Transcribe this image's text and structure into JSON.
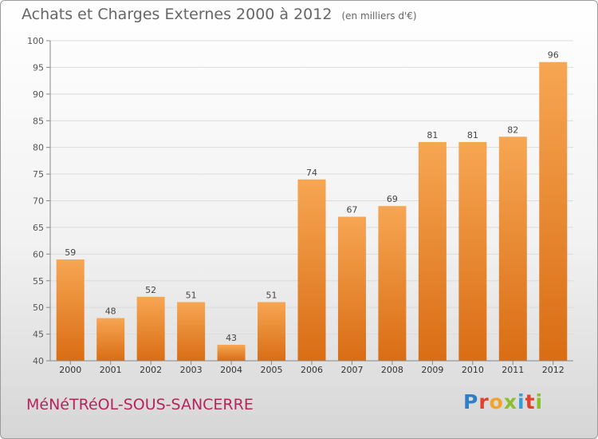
{
  "header": {
    "title": "Achats et Charges Externes 2000 à 2012",
    "unit": "(en milliers d'€)"
  },
  "footer": {
    "commune": "MéNéTRéOL-SOUS-SANCERRE",
    "logo_letters": [
      "P",
      "r",
      "o",
      "x",
      "i",
      "t",
      "i"
    ],
    "logo_colors": [
      "#2f7fc8",
      "#e2402d",
      "#f2a32a",
      "#8bbf2c",
      "#2f9fd8",
      "#e2402d",
      "#8bbf2c"
    ]
  },
  "chart_data": {
    "type": "bar",
    "categories": [
      "2000",
      "2001",
      "2002",
      "2003",
      "2004",
      "2005",
      "2006",
      "2007",
      "2008",
      "2009",
      "2010",
      "2011",
      "2012"
    ],
    "values": [
      59,
      48,
      52,
      51,
      43,
      51,
      74,
      67,
      69,
      81,
      81,
      82,
      96
    ],
    "title": "Achats et Charges Externes 2000 à 2012",
    "ylim": [
      40,
      100
    ],
    "yticks": [
      40,
      45,
      50,
      55,
      60,
      65,
      70,
      75,
      80,
      85,
      90,
      95,
      100
    ],
    "grid": true,
    "bar_color_top": "#f7a653",
    "bar_color_bottom": "#d96d14"
  }
}
